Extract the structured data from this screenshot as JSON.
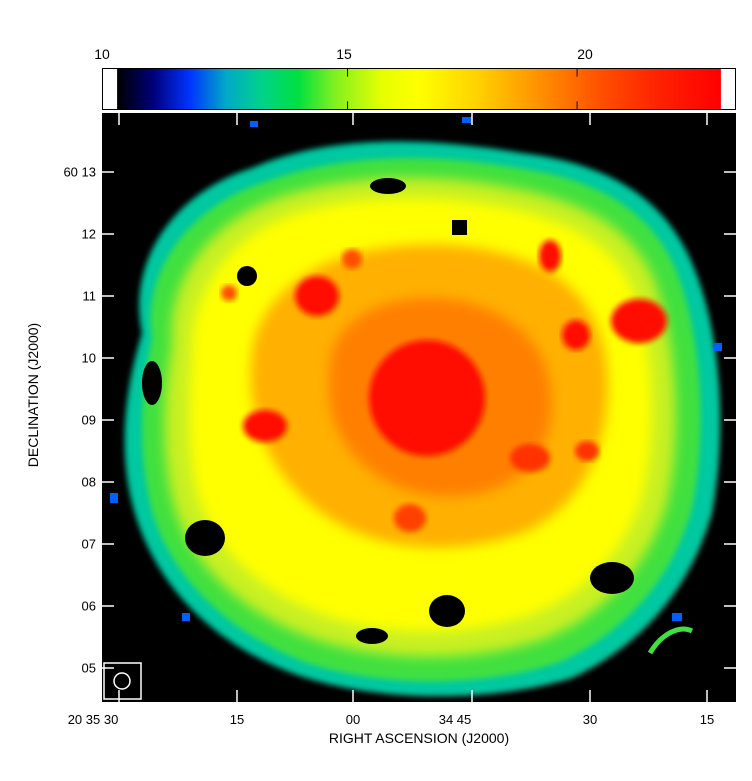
{
  "colorbar": {
    "ticks": [
      {
        "value": 10,
        "label": "10"
      },
      {
        "value": 15,
        "label": "15"
      },
      {
        "value": 20,
        "label": "20"
      }
    ],
    "range": [
      10,
      22.2
    ],
    "colors": [
      "#000000",
      "#00007a",
      "#0033ff",
      "#00a8c8",
      "#00d28a",
      "#00e040",
      "#80f020",
      "#e8ff00",
      "#ffff00",
      "#ffd000",
      "#ff9000",
      "#ff5000",
      "#ff2000",
      "#ff0000"
    ]
  },
  "axes": {
    "xlabel": "RIGHT ASCENSION (J2000)",
    "ylabel": "DECLINATION (J2000)",
    "ra_ticks": [
      "20 35 30",
      "15",
      "00",
      "34 45",
      "30",
      "15"
    ],
    "dec_ticks": [
      "05",
      "06",
      "07",
      "08",
      "09",
      "10",
      "11",
      "12",
      "60 13"
    ]
  },
  "map_colors": {
    "background": "#000000",
    "outer": "#00c8a0",
    "green": "#40e040",
    "yellowgreen": "#c8f020",
    "yellow": "#ffff00",
    "orange": "#ffb000",
    "darkorange": "#ff8000",
    "red": "#ff1000"
  }
}
